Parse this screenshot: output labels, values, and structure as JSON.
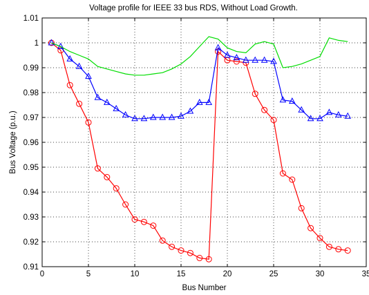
{
  "chart_data": {
    "type": "line",
    "title": "Voltage profile for IEEE 33 bus RDS, Without Load Growth.",
    "xlabel": "Bus Number",
    "ylabel": "Bus Voltage (p.u.)",
    "xlim": [
      0,
      35
    ],
    "ylim": [
      0.91,
      1.01
    ],
    "xticks": [
      0,
      5,
      10,
      15,
      20,
      25,
      30,
      35
    ],
    "yticks": [
      0.91,
      0.92,
      0.93,
      0.94,
      0.95,
      0.96,
      0.97,
      0.98,
      0.99,
      1,
      1.01
    ],
    "ytick_labels": [
      "0.91",
      "0.92",
      "0.93",
      "0.94",
      "0.95",
      "0.96",
      "0.97",
      "0.98",
      "0.99",
      "1",
      "1.01"
    ],
    "grid": true,
    "grid_style": "dotted",
    "series": [
      {
        "color": "#ff0000",
        "marker": "circle",
        "x": [
          1,
          2,
          3,
          4,
          5,
          6,
          7,
          8,
          9,
          10,
          11,
          12,
          13,
          14,
          15,
          16,
          17,
          18,
          19,
          20,
          21,
          22,
          23,
          24,
          25,
          26,
          27,
          28,
          29,
          30,
          31,
          32,
          33
        ],
        "y": [
          1.0,
          0.997,
          0.983,
          0.9755,
          0.968,
          0.9495,
          0.946,
          0.9415,
          0.935,
          0.929,
          0.928,
          0.9265,
          0.9205,
          0.918,
          0.9165,
          0.9155,
          0.9135,
          0.913,
          0.9965,
          0.993,
          0.9925,
          0.992,
          0.9795,
          0.973,
          0.969,
          0.9475,
          0.945,
          0.9335,
          0.9255,
          0.9215,
          0.918,
          0.917,
          0.9165
        ]
      },
      {
        "color": "#0000ff",
        "marker": "triangle",
        "x": [
          1,
          2,
          3,
          4,
          5,
          6,
          7,
          8,
          9,
          10,
          11,
          12,
          13,
          14,
          15,
          16,
          17,
          18,
          19,
          20,
          21,
          22,
          23,
          24,
          25,
          26,
          27,
          28,
          29,
          30,
          31,
          32,
          33
        ],
        "y": [
          1.0,
          0.9985,
          0.9935,
          0.9905,
          0.9865,
          0.978,
          0.976,
          0.9735,
          0.971,
          0.9695,
          0.9695,
          0.97,
          0.97,
          0.97,
          0.9705,
          0.9725,
          0.976,
          0.976,
          0.998,
          0.995,
          0.994,
          0.993,
          0.993,
          0.993,
          0.9925,
          0.977,
          0.9765,
          0.973,
          0.9695,
          0.9695,
          0.972,
          0.971,
          0.9705
        ]
      },
      {
        "color": "#00dd00",
        "marker": "none",
        "x": [
          1,
          2,
          3,
          4,
          5,
          6,
          7,
          8,
          9,
          10,
          11,
          12,
          13,
          14,
          15,
          16,
          17,
          18,
          19,
          20,
          21,
          22,
          23,
          24,
          25,
          26,
          27,
          28,
          29,
          30,
          31,
          32,
          33
        ],
        "y": [
          1.0,
          0.9985,
          0.9965,
          0.995,
          0.9935,
          0.9905,
          0.9895,
          0.9885,
          0.9875,
          0.987,
          0.987,
          0.9875,
          0.988,
          0.9895,
          0.9915,
          0.9945,
          0.9985,
          1.0025,
          1.0015,
          0.998,
          0.9965,
          0.996,
          0.9995,
          1.0005,
          0.9995,
          0.99,
          0.9905,
          0.9915,
          0.993,
          0.9945,
          1.002,
          1.001,
          1.0005
        ]
      }
    ]
  }
}
